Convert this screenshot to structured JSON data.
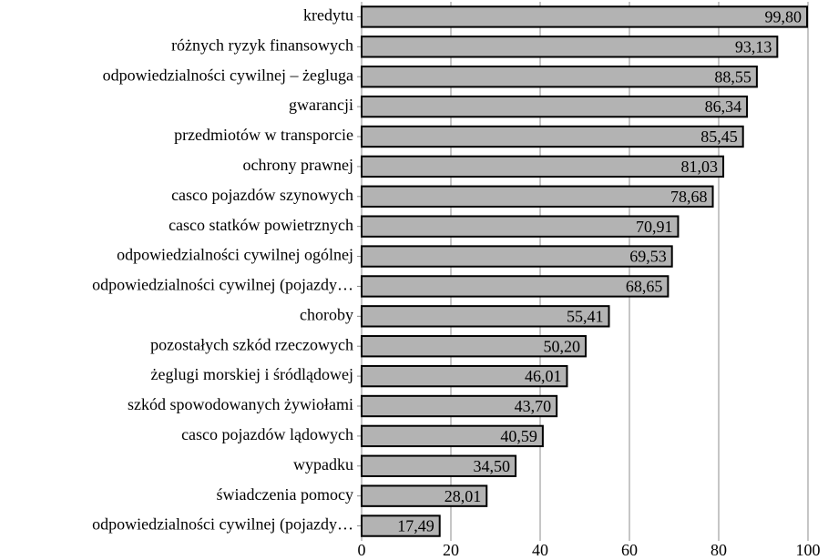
{
  "chart_data": {
    "type": "bar",
    "orientation": "horizontal",
    "categories": [
      "kredytu",
      "różnych ryzyk finansowych",
      "odpowiedzialności cywilnej – żegluga",
      "gwarancji",
      "przedmiotów w transporcie",
      "ochrony prawnej",
      "casco pojazdów szynowych",
      "casco statków powietrznych",
      "odpowiedzialności cywilnej ogólnej",
      "odpowiedzialności cywilnej (pojazdy…",
      "choroby",
      "pozostałych szkód rzeczowych",
      "żeglugi morskiej i śródlądowej",
      "szkód spowodowanych żywiołami",
      "casco pojazdów lądowych",
      "wypadku",
      "świadczenia pomocy",
      "odpowiedzialności cywilnej (pojazdy…"
    ],
    "values": [
      99.8,
      93.13,
      88.55,
      86.34,
      85.45,
      81.03,
      78.68,
      70.91,
      69.53,
      68.65,
      55.41,
      50.2,
      46.01,
      43.7,
      40.59,
      34.5,
      28.01,
      17.49
    ],
    "value_labels": [
      "99,80",
      "93,13",
      "88,55",
      "86,34",
      "85,45",
      "81,03",
      "78,68",
      "70,91",
      "69,53",
      "68,65",
      "55,41",
      "50,20",
      "46,01",
      "43,70",
      "40,59",
      "34,50",
      "28,01",
      "17,49"
    ],
    "color": "#b3b3b3",
    "xlim": [
      0,
      100
    ],
    "xticks": [
      0,
      20,
      40,
      60,
      80,
      100
    ],
    "grid": true
  }
}
